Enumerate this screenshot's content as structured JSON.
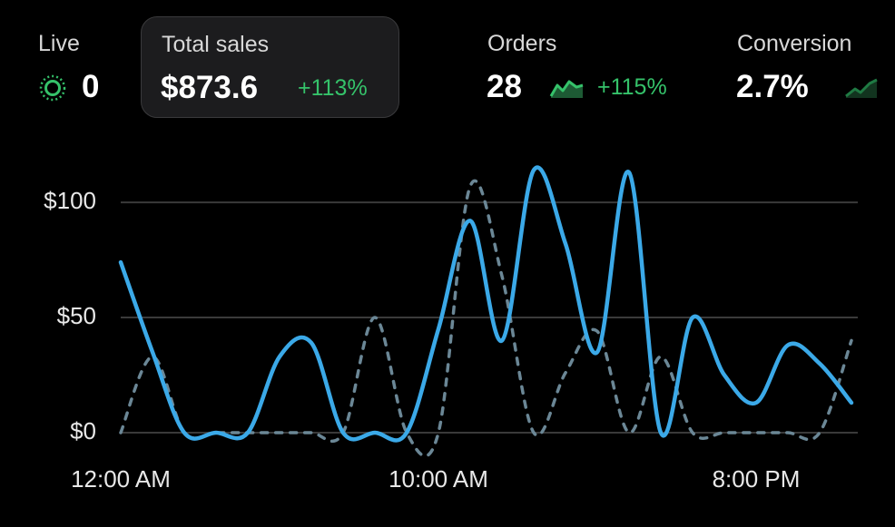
{
  "metrics": [
    {
      "label": "Live",
      "value": "0"
    },
    {
      "label": "Total sales",
      "value": "$873.6",
      "change": "+113%"
    },
    {
      "label": "Orders",
      "value": "28",
      "change": "+115%"
    },
    {
      "label": "Conversion",
      "value": "2.7%"
    }
  ],
  "chart_data": {
    "type": "line",
    "categories": [
      "12:00 AM",
      null,
      null,
      null,
      null,
      null,
      null,
      null,
      null,
      null,
      "10:00 AM",
      null,
      null,
      null,
      null,
      null,
      null,
      null,
      null,
      null,
      "8:00 PM",
      null,
      null,
      null
    ],
    "series": [
      {
        "color": "#3ba9e8",
        "style": "solid",
        "values": [
          74,
          35,
          0,
          0,
          0,
          33,
          39,
          0,
          0,
          0,
          45,
          92,
          40,
          114,
          82,
          35,
          113,
          0,
          50,
          25,
          13,
          38,
          30,
          13
        ]
      },
      {
        "color": "#6b8796",
        "style": "dashed",
        "values": [
          0,
          33,
          0,
          0,
          0,
          0,
          0,
          0,
          50,
          0,
          0,
          107,
          68,
          0,
          26,
          44,
          0,
          33,
          0,
          0,
          0,
          0,
          0,
          40
        ]
      }
    ],
    "ylim": [
      0,
      115
    ],
    "yticks": [
      {
        "value": 0,
        "label": "$0"
      },
      {
        "value": 50,
        "label": "$50"
      },
      {
        "value": 100,
        "label": "$100"
      }
    ],
    "grid": true
  }
}
